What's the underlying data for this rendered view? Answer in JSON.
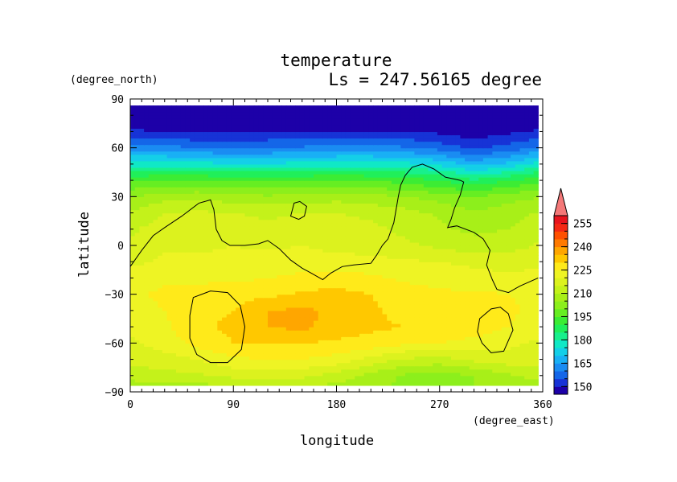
{
  "chart_data": {
    "type": "heatmap",
    "title": "temperature",
    "subtitle": "Ls = 247.56165 degree",
    "xlabel": "longitude",
    "ylabel": "latitude",
    "x_units": "(degree_east)",
    "y_units": "(degree_north)",
    "xlim": [
      0,
      360
    ],
    "ylim": [
      -90,
      90
    ],
    "x_ticks": [
      0,
      90,
      180,
      270,
      360
    ],
    "x_tick_labels": [
      "0",
      "90",
      "180",
      "270",
      "360"
    ],
    "y_ticks": [
      90,
      60,
      30,
      0,
      -30,
      -60,
      -90
    ],
    "y_tick_labels": [
      "90",
      "60",
      "30",
      "0",
      "−30",
      "−60",
      "−90"
    ],
    "data_extent": {
      "lon": [
        0,
        356
      ],
      "lat": [
        -86,
        86
      ]
    },
    "colorbar": {
      "levels": [
        145,
        150,
        155,
        160,
        165,
        170,
        175,
        180,
        185,
        190,
        195,
        200,
        205,
        210,
        215,
        220,
        225,
        230,
        235,
        240,
        245,
        250,
        255,
        260
      ],
      "colors": [
        "#1d00a8",
        "#1733d6",
        "#1466e8",
        "#1a8cf2",
        "#19b0f5",
        "#14cfe8",
        "#10e8c6",
        "#18f08c",
        "#20ef5a",
        "#3cec34",
        "#66ee22",
        "#8cef1c",
        "#a8ef18",
        "#c4f21a",
        "#dcf21e",
        "#eef424",
        "#ffea1a",
        "#ffc800",
        "#ffa600",
        "#ff7a00",
        "#ff5000",
        "#f42814",
        "#e8141e"
      ],
      "extend_color": "#f47878",
      "tick_values": [
        150,
        165,
        180,
        195,
        210,
        225,
        240,
        255
      ],
      "tick_labels": [
        "150",
        "165",
        "180",
        "195",
        "210",
        "225",
        "240",
        "255"
      ]
    },
    "field": {
      "lon_nodes": [
        0,
        30,
        60,
        90,
        120,
        150,
        180,
        210,
        240,
        270,
        300,
        330,
        360
      ],
      "lat_nodes": [
        -90,
        -80,
        -70,
        -60,
        -50,
        -40,
        -30,
        -20,
        -10,
        0,
        10,
        20,
        30,
        40,
        50,
        60,
        70,
        80,
        90
      ],
      "values": [
        [
          205,
          205,
          205,
          206,
          207,
          206,
          206,
          205,
          204,
          203,
          205,
          206,
          205
        ],
        [
          212,
          213,
          214,
          216,
          217,
          216,
          213,
          208,
          204,
          202,
          205,
          209,
          212
        ],
        [
          217,
          218,
          220,
          224,
          225,
          225,
          223,
          218,
          214,
          213,
          216,
          218,
          217
        ],
        [
          219,
          222,
          227,
          230,
          230,
          230,
          229,
          228,
          226,
          225,
          223,
          221,
          219
        ],
        [
          221,
          224,
          229,
          231,
          235,
          236,
          233,
          231,
          230,
          229,
          228,
          225,
          221
        ],
        [
          223,
          225,
          229,
          230,
          235,
          236,
          234,
          231,
          228,
          227,
          226,
          226,
          223
        ],
        [
          224,
          226,
          227,
          228,
          229,
          231,
          232,
          230,
          228,
          226,
          226,
          225,
          224
        ],
        [
          222,
          224,
          224,
          224,
          225,
          226,
          227,
          226,
          224,
          223,
          222,
          221,
          222
        ],
        [
          219,
          221,
          221,
          222,
          223,
          223,
          223,
          222,
          221,
          220,
          219,
          218,
          219
        ],
        [
          216,
          219,
          219,
          220,
          219,
          220,
          218,
          217,
          216,
          214,
          212,
          213,
          216
        ],
        [
          214,
          218,
          218,
          218,
          216,
          218,
          217,
          216,
          214,
          211,
          209,
          210,
          214
        ],
        [
          211,
          215,
          216,
          215,
          214,
          215,
          215,
          214,
          212,
          209,
          206,
          208,
          211
        ],
        [
          205,
          208,
          209,
          207,
          206,
          207,
          208,
          207,
          205,
          203,
          200,
          203,
          205
        ],
        [
          194,
          196,
          196,
          195,
          194,
          195,
          196,
          195,
          193,
          190,
          186,
          190,
          194
        ],
        [
          178,
          178,
          177,
          176,
          176,
          177,
          178,
          178,
          177,
          174,
          168,
          172,
          178
        ],
        [
          162,
          162,
          160,
          160,
          160,
          161,
          162,
          162,
          161,
          158,
          154,
          157,
          162
        ],
        [
          151,
          150,
          149,
          149,
          150,
          150,
          150,
          150,
          150,
          149,
          147,
          149,
          151
        ],
        [
          145,
          145,
          145,
          145,
          145,
          145,
          145,
          145,
          145,
          145,
          145,
          145,
          145
        ],
        [
          143,
          143,
          143,
          143,
          143,
          143,
          143,
          143,
          143,
          143,
          143,
          143,
          143
        ]
      ]
    },
    "contours": [
      {
        "name": "coastline",
        "closed": false,
        "points": [
          [
            0,
            -13
          ],
          [
            10,
            -3
          ],
          [
            20,
            6
          ],
          [
            30,
            11
          ],
          [
            45,
            18
          ],
          [
            60,
            26
          ],
          [
            70,
            28
          ],
          [
            73,
            22
          ],
          [
            75,
            10
          ],
          [
            80,
            3
          ],
          [
            87,
            0
          ],
          [
            100,
            0
          ],
          [
            112,
            1
          ],
          [
            120,
            3
          ],
          [
            130,
            -2
          ],
          [
            140,
            -9
          ],
          [
            150,
            -14
          ],
          [
            158,
            -17
          ],
          [
            168,
            -21
          ],
          [
            175,
            -17
          ],
          [
            185,
            -13
          ],
          [
            195,
            -12
          ],
          [
            210,
            -11
          ],
          [
            215,
            -6
          ],
          [
            220,
            0
          ],
          [
            225,
            4
          ],
          [
            230,
            14
          ],
          [
            232,
            22
          ],
          [
            234,
            30
          ],
          [
            236,
            37
          ],
          [
            240,
            43
          ],
          [
            246,
            48
          ],
          [
            255,
            50
          ],
          [
            265,
            47
          ],
          [
            275,
            42
          ],
          [
            288,
            40
          ],
          [
            291,
            39
          ],
          [
            288,
            31
          ],
          [
            283,
            23
          ],
          [
            280,
            16
          ],
          [
            277,
            11
          ],
          [
            285,
            12
          ],
          [
            300,
            8
          ],
          [
            308,
            4
          ],
          [
            314,
            -3
          ],
          [
            311,
            -12
          ],
          [
            316,
            -21
          ],
          [
            320,
            -27
          ],
          [
            330,
            -29
          ],
          [
            340,
            -25
          ],
          [
            356,
            -20
          ]
        ]
      },
      {
        "name": "small-loop",
        "closed": true,
        "points": [
          [
            140,
            18
          ],
          [
            143,
            26
          ],
          [
            148,
            27
          ],
          [
            154,
            24
          ],
          [
            152,
            18
          ],
          [
            147,
            16
          ]
        ]
      },
      {
        "name": "left-basin",
        "closed": true,
        "points": [
          [
            55,
            -32
          ],
          [
            70,
            -28
          ],
          [
            85,
            -29
          ],
          [
            96,
            -37
          ],
          [
            100,
            -50
          ],
          [
            97,
            -64
          ],
          [
            85,
            -72
          ],
          [
            70,
            -72
          ],
          [
            58,
            -67
          ],
          [
            52,
            -57
          ],
          [
            52,
            -43
          ]
        ]
      },
      {
        "name": "right-basin",
        "closed": true,
        "points": [
          [
            305,
            -45
          ],
          [
            315,
            -39
          ],
          [
            323,
            -38
          ],
          [
            330,
            -42
          ],
          [
            334,
            -52
          ],
          [
            326,
            -65
          ],
          [
            315,
            -66
          ],
          [
            307,
            -60
          ],
          [
            303,
            -53
          ]
        ]
      }
    ]
  }
}
